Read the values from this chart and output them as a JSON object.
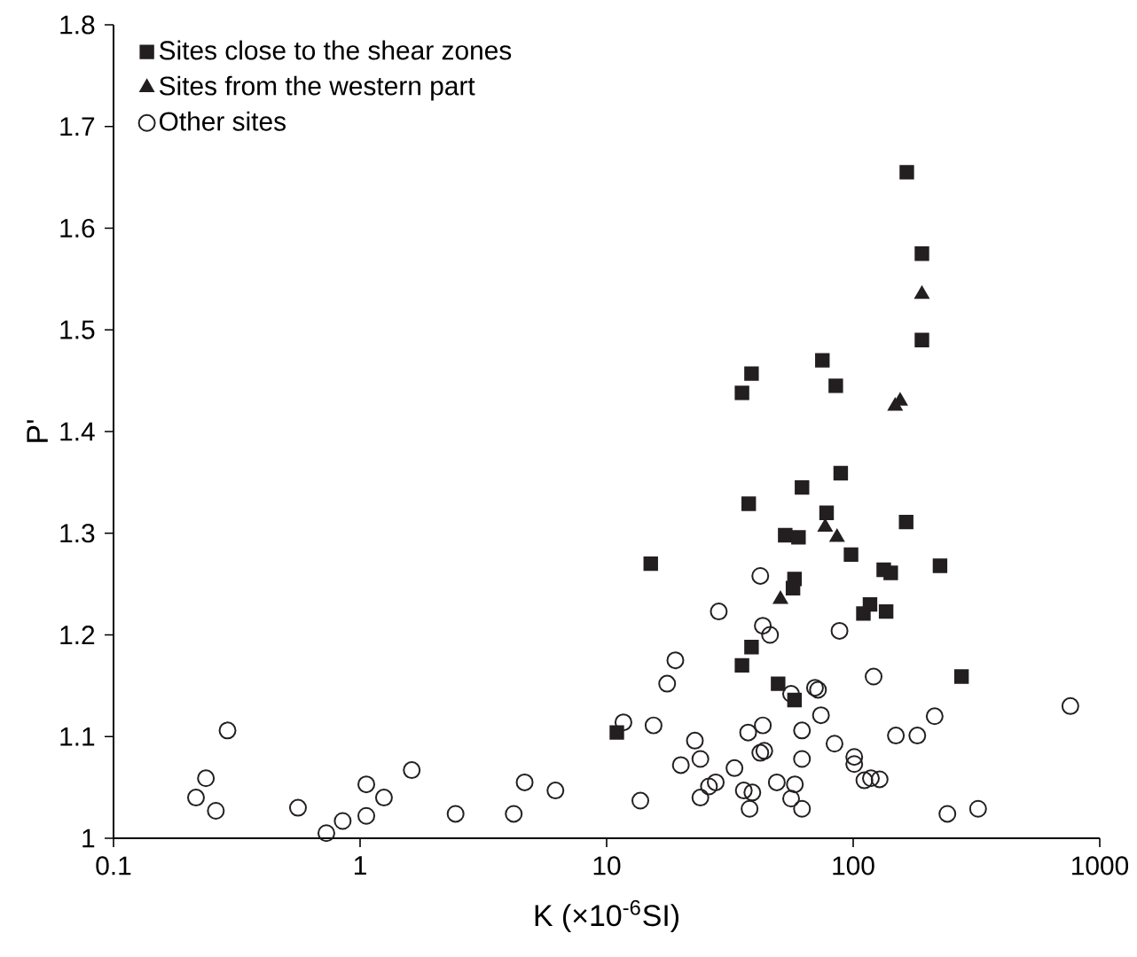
{
  "chart_data": {
    "type": "scatter",
    "xlabel": "K (×10$^{-6}$SI)",
    "ylabel": "P'",
    "log": "x",
    "xlim": [
      0.1,
      1000
    ],
    "xticks": [
      0.1,
      1,
      10,
      100,
      1000
    ],
    "ylim": [
      1,
      1.8
    ],
    "yticks": [
      1,
      1.1,
      1.2,
      1.3,
      1.4,
      1.5,
      1.6,
      1.7,
      1.8
    ],
    "grid": false,
    "legend": "top left",
    "series": [
      {
        "name": "Sites close to the shear zones",
        "marker": "square",
        "color": "#231f20",
        "x": [
          165,
          190,
          190,
          164,
          225,
          275,
          38.7,
          35.4,
          75,
          85,
          89,
          62,
          78,
          53,
          60,
          98,
          133,
          142,
          117,
          110,
          136,
          57.8,
          57,
          37.7,
          38.7,
          35.4,
          15.1,
          11,
          49.6,
          57.8
        ],
        "values": [
          1.655,
          1.575,
          1.49,
          1.311,
          1.268,
          1.159,
          1.457,
          1.438,
          1.47,
          1.445,
          1.359,
          1.345,
          1.32,
          1.298,
          1.296,
          1.279,
          1.264,
          1.261,
          1.23,
          1.221,
          1.223,
          1.255,
          1.246,
          1.329,
          1.188,
          1.17,
          1.27,
          1.104,
          1.152,
          1.136
        ]
      },
      {
        "name": "Sites from the western part",
        "marker": "triangle",
        "color": "#231f20",
        "x": [
          190,
          155,
          148,
          77,
          86,
          50.7
        ],
        "values": [
          1.535,
          1.43,
          1.425,
          1.306,
          1.296,
          1.235
        ]
      },
      {
        "name": "Other sites",
        "marker": "circle",
        "color": "#231f20",
        "x": [
          0.216,
          0.237,
          0.26,
          0.29,
          0.56,
          0.73,
          0.85,
          1.06,
          1.06,
          1.25,
          1.62,
          2.44,
          4.2,
          4.65,
          6.2,
          11.7,
          13.7,
          15.5,
          17.6,
          19,
          20,
          22.8,
          24,
          24,
          26,
          27.7,
          28.5,
          33,
          36,
          37.5,
          38,
          39,
          42,
          42,
          43.6,
          43,
          43,
          46,
          49,
          56,
          56,
          58,
          62,
          62,
          62,
          70,
          72,
          74,
          84,
          88,
          101,
          101,
          111,
          118,
          128,
          121,
          149,
          182,
          214,
          241,
          321,
          760
        ],
        "values": [
          1.04,
          1.059,
          1.027,
          1.106,
          1.03,
          1.005,
          1.017,
          1.053,
          1.022,
          1.04,
          1.067,
          1.024,
          1.024,
          1.055,
          1.047,
          1.114,
          1.037,
          1.111,
          1.152,
          1.175,
          1.072,
          1.096,
          1.078,
          1.04,
          1.051,
          1.055,
          1.223,
          1.069,
          1.047,
          1.104,
          1.029,
          1.045,
          1.258,
          1.084,
          1.086,
          1.209,
          1.111,
          1.2,
          1.055,
          1.039,
          1.142,
          1.053,
          1.029,
          1.078,
          1.106,
          1.148,
          1.146,
          1.121,
          1.093,
          1.204,
          1.08,
          1.073,
          1.057,
          1.059,
          1.058,
          1.159,
          1.101,
          1.101,
          1.12,
          1.024,
          1.029,
          1.13
        ]
      }
    ]
  }
}
